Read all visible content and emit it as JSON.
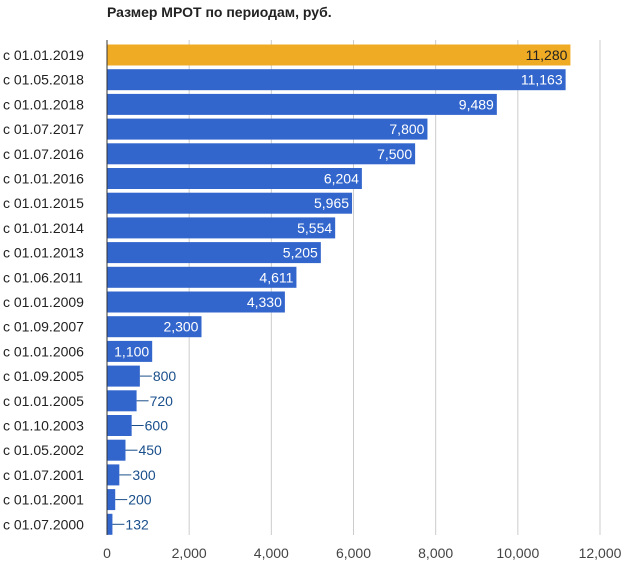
{
  "chart_data": {
    "type": "bar",
    "orientation": "horizontal",
    "title": "Размер МРОТ по периодам, руб.",
    "xlabel": "",
    "ylabel": "",
    "xlim": [
      0,
      12000
    ],
    "xticks": [
      0,
      2000,
      4000,
      6000,
      8000,
      10000,
      12000
    ],
    "xtick_labels": [
      "0",
      "2,000",
      "4,000",
      "6,000",
      "8,000",
      "10,000",
      "12,000"
    ],
    "grid": true,
    "legend": "none",
    "categories": [
      "с 01.01.2019",
      "с 01.05.2018",
      "с 01.01.2018",
      "с 01.07.2017",
      "с 01.07.2016",
      "с 01.01.2016",
      "с 01.01.2015",
      "с 01.01.2014",
      "с 01.01.2013",
      "с 01.06.2011",
      "с 01.01.2009",
      "с 01.09.2007",
      "с 01.01.2006",
      "с 01.09.2005",
      "с 01.01.2005",
      "с 01.10.2003",
      "с 01.05.2002",
      "с 01.07.2001",
      "с 01.01.2001",
      "с 01.07.2000"
    ],
    "values": [
      11280,
      11163,
      9489,
      7800,
      7500,
      6204,
      5965,
      5554,
      5205,
      4611,
      4330,
      2300,
      1100,
      800,
      720,
      600,
      450,
      300,
      200,
      132
    ],
    "value_labels": [
      "11,280",
      "11,163",
      "9,489",
      "7,800",
      "7,500",
      "6,204",
      "5,965",
      "5,554",
      "5,205",
      "4,611",
      "4,330",
      "2,300",
      "1,100",
      "800",
      "720",
      "600",
      "450",
      "300",
      "200",
      "132"
    ],
    "colors": {
      "bar": "#3366cc",
      "highlight_bar": "#f0ab24",
      "grid": "#cccccc",
      "outside_label": "#1a4f8b"
    },
    "highlight_index": 0
  }
}
